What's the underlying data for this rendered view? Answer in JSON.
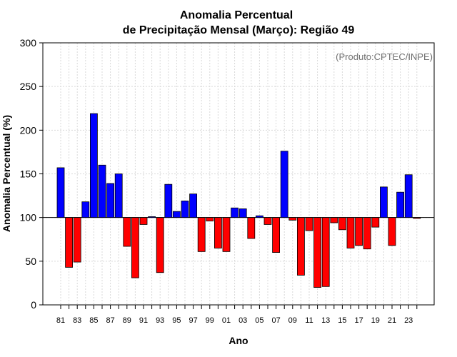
{
  "chart_data": {
    "type": "bar",
    "title": [
      "Anomalia Percentual",
      "de Precipitação Mensal (Março): Região 49"
    ],
    "xlabel": "Ano",
    "ylabel": "Anomalia Percentual (%)",
    "annotation": "(Produto:CPTEC/INPE)",
    "ylim": [
      0,
      300
    ],
    "yticks": [
      0,
      50,
      100,
      150,
      200,
      250,
      300
    ],
    "baseline": 100,
    "grid": true,
    "colors": {
      "above": "#0000ff",
      "below": "#ff0000",
      "grid": "#d9d9d9",
      "stroke": "#000000"
    },
    "categories": [
      "81",
      "82",
      "83",
      "84",
      "85",
      "86",
      "87",
      "88",
      "89",
      "90",
      "91",
      "92",
      "93",
      "94",
      "95",
      "96",
      "97",
      "98",
      "99",
      "00",
      "01",
      "02",
      "03",
      "04",
      "05",
      "06",
      "07",
      "08",
      "09",
      "10",
      "11",
      "12",
      "13",
      "14",
      "15",
      "16",
      "17",
      "18",
      "19",
      "20",
      "21",
      "22",
      "23",
      "24"
    ],
    "x_tick_labels": [
      "81",
      "83",
      "85",
      "87",
      "89",
      "91",
      "93",
      "95",
      "97",
      "99",
      "01",
      "03",
      "05",
      "07",
      "09",
      "11",
      "13",
      "15",
      "17",
      "19",
      "21",
      "23"
    ],
    "values": [
      157,
      43,
      49,
      118,
      219,
      160,
      139,
      150,
      67,
      31,
      92,
      101,
      37,
      138,
      107,
      119,
      127,
      61,
      96,
      65,
      61,
      111,
      110,
      76,
      102,
      92,
      60,
      176,
      97,
      34,
      85,
      20,
      21,
      94,
      86,
      65,
      68,
      64,
      89,
      135,
      68,
      129,
      149,
      99
    ]
  }
}
